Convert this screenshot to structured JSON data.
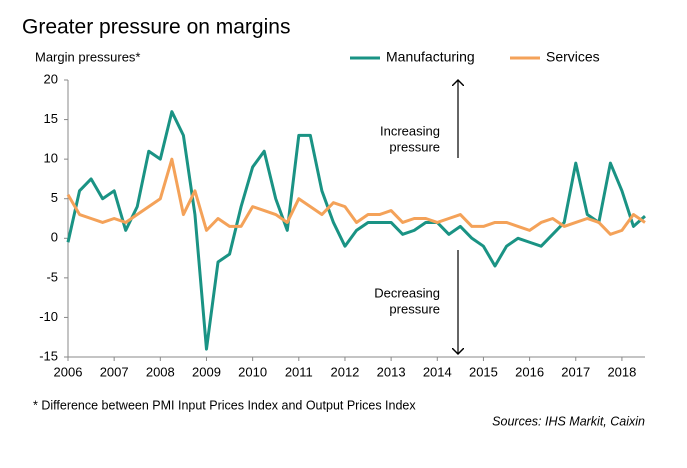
{
  "chart_data": {
    "type": "line",
    "title": "Greater pressure on margins",
    "y_label": "Margin pressures*",
    "footnote": "* Difference between PMI Input Prices Index and Output Prices Index",
    "source": "Sources: IHS Markit, Caixin",
    "annotations": [
      [
        "Increasing",
        "pressure"
      ],
      [
        "Decreasing",
        "pressure"
      ]
    ],
    "x": [
      2006,
      2006.25,
      2006.5,
      2006.75,
      2007,
      2007.25,
      2007.5,
      2007.75,
      2008,
      2008.25,
      2008.5,
      2008.75,
      2009,
      2009.25,
      2009.5,
      2009.75,
      2010,
      2010.25,
      2010.5,
      2010.75,
      2011,
      2011.25,
      2011.5,
      2011.75,
      2012,
      2012.25,
      2012.5,
      2012.75,
      2013,
      2013.25,
      2013.5,
      2013.75,
      2014,
      2014.25,
      2014.5,
      2014.75,
      2015,
      2015.25,
      2015.5,
      2015.75,
      2016,
      2016.25,
      2016.5,
      2016.75,
      2017,
      2017.25,
      2017.5,
      2017.75,
      2018,
      2018.25,
      2018.5
    ],
    "series": [
      {
        "name": "Manufacturing",
        "color": "#1a9384",
        "values": [
          -0.5,
          6,
          7.5,
          5,
          6,
          1,
          4,
          11,
          10,
          16,
          13,
          3,
          -14,
          -3,
          -2,
          4,
          9,
          11,
          5,
          1,
          13,
          13,
          6,
          2,
          -1,
          1,
          2,
          2,
          2,
          0.5,
          1,
          2,
          2,
          0.5,
          1.5,
          0,
          -1,
          -3.5,
          -1,
          0,
          -0.5,
          -1,
          0.5,
          2,
          9.5,
          3,
          2,
          9.5,
          6,
          1.5,
          2.8
        ]
      },
      {
        "name": "Services",
        "color": "#f4a259",
        "values": [
          5.5,
          3,
          2.5,
          2,
          2.5,
          2,
          3,
          4,
          5,
          10,
          3,
          6,
          1,
          2.5,
          1.5,
          1.5,
          4,
          3.5,
          3,
          2,
          5,
          4,
          3,
          4.5,
          4,
          2,
          3,
          3,
          3.5,
          2,
          2.5,
          2.5,
          2,
          2.5,
          3,
          1.5,
          1.5,
          2,
          2,
          1.5,
          1,
          2,
          2.5,
          1.5,
          2,
          2.5,
          2,
          0.5,
          1,
          3,
          2
        ]
      }
    ],
    "xlim": [
      2006,
      2018.5
    ],
    "xticks": [
      2006,
      2007,
      2008,
      2009,
      2010,
      2011,
      2012,
      2013,
      2014,
      2015,
      2016,
      2017,
      2018
    ],
    "ylim": [
      -15,
      20
    ],
    "yticks": [
      -15,
      -10,
      -5,
      0,
      5,
      10,
      15,
      20
    ],
    "grid": false
  }
}
